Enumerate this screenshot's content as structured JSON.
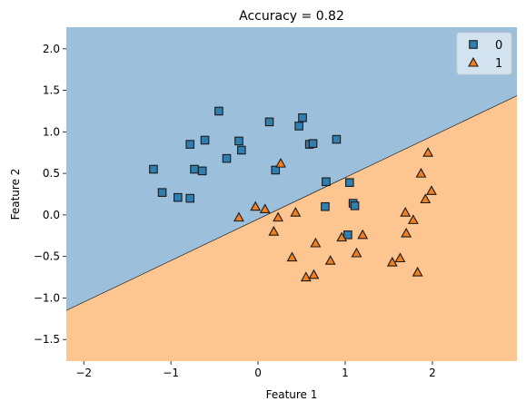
{
  "chart_data": {
    "type": "scatter",
    "title": "Accuracy = 0.82",
    "xlabel": "Feature 1",
    "ylabel": "Feature 2",
    "xlim": [
      -2.2,
      2.97
    ],
    "ylim": [
      -1.76,
      2.26
    ],
    "x_ticks": [
      -2,
      -1,
      0,
      1,
      2
    ],
    "y_ticks": [
      -1.5,
      -1.0,
      -0.5,
      0.0,
      0.5,
      1.0,
      1.5,
      2.0
    ],
    "x_tick_labels": [
      "−2",
      "−1",
      "0",
      "1",
      "2"
    ],
    "y_tick_labels": [
      "−1.5",
      "−1.0",
      "−0.5",
      "0.0",
      "0.5",
      "1.0",
      "1.5",
      "2.0"
    ],
    "grid": false,
    "legend_position": "top-right",
    "decision_boundary": {
      "slope": 0.5,
      "intercept": -0.05
    },
    "region_colors": {
      "class_0": "#9cc0dc",
      "class_1": "#fdc590"
    },
    "series": [
      {
        "name": "0",
        "marker": "square",
        "color": "#2f7fb1",
        "points": [
          [
            -1.2,
            0.55
          ],
          [
            -1.1,
            0.27
          ],
          [
            -0.92,
            0.21
          ],
          [
            -0.78,
            0.2
          ],
          [
            -0.78,
            0.85
          ],
          [
            -0.73,
            0.55
          ],
          [
            -0.64,
            0.53
          ],
          [
            -0.61,
            0.9
          ],
          [
            -0.45,
            1.25
          ],
          [
            -0.36,
            0.68
          ],
          [
            -0.22,
            0.89
          ],
          [
            -0.19,
            0.78
          ],
          [
            0.13,
            1.12
          ],
          [
            0.2,
            0.54
          ],
          [
            0.47,
            1.07
          ],
          [
            0.51,
            1.17
          ],
          [
            0.59,
            0.85
          ],
          [
            0.63,
            0.86
          ],
          [
            0.78,
            0.4
          ],
          [
            0.77,
            0.1
          ],
          [
            0.9,
            0.91
          ],
          [
            1.05,
            0.39
          ],
          [
            1.09,
            0.14
          ],
          [
            1.11,
            0.11
          ],
          [
            1.03,
            -0.24
          ]
        ]
      },
      {
        "name": "1",
        "marker": "triangle",
        "color": "#f07f1c",
        "points": [
          [
            -0.22,
            -0.03
          ],
          [
            -0.03,
            0.1
          ],
          [
            0.08,
            0.07
          ],
          [
            0.18,
            -0.2
          ],
          [
            0.23,
            -0.03
          ],
          [
            0.26,
            0.62
          ],
          [
            0.39,
            -0.51
          ],
          [
            0.43,
            0.03
          ],
          [
            0.55,
            -0.75
          ],
          [
            0.64,
            -0.72
          ],
          [
            0.66,
            -0.34
          ],
          [
            0.83,
            -0.55
          ],
          [
            0.96,
            -0.27
          ],
          [
            1.13,
            -0.46
          ],
          [
            1.2,
            -0.24
          ],
          [
            1.54,
            -0.57
          ],
          [
            1.63,
            -0.52
          ],
          [
            1.69,
            0.03
          ],
          [
            1.7,
            -0.22
          ],
          [
            1.78,
            -0.06
          ],
          [
            1.83,
            -0.69
          ],
          [
            1.87,
            0.5
          ],
          [
            1.92,
            0.19
          ],
          [
            1.95,
            0.75
          ],
          [
            1.99,
            0.29
          ]
        ]
      }
    ]
  }
}
